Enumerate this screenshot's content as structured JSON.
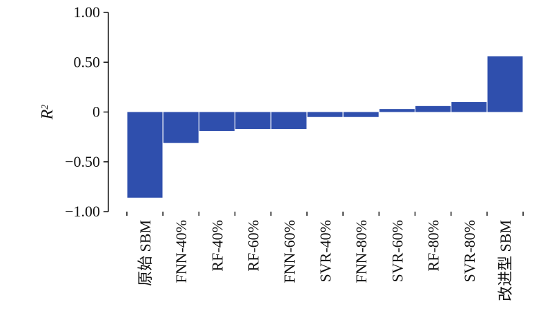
{
  "chart_data": {
    "type": "bar",
    "ylabel": "R",
    "ylabel_sup": "2",
    "categories": [
      "原始 SBM",
      "FNN-40%",
      "RF-40%",
      "RF-60%",
      "FNN-60%",
      "SVR-40%",
      "FNN-80%",
      "SVR-60%",
      "RF-80%",
      "SVR-80%",
      "改进型 SBM"
    ],
    "values": [
      -0.86,
      -0.31,
      -0.19,
      -0.17,
      -0.17,
      -0.05,
      -0.05,
      0.03,
      0.06,
      0.1,
      0.56
    ],
    "ylim": [
      -1.0,
      1.0
    ],
    "yticks": [
      1.0,
      0.5,
      0,
      -0.5,
      -1.0
    ],
    "ytick_labels": [
      "1.00",
      "0.50",
      "0",
      "−0.50",
      "−1.00"
    ],
    "grid": false,
    "bar_color": "#2f4fad"
  }
}
